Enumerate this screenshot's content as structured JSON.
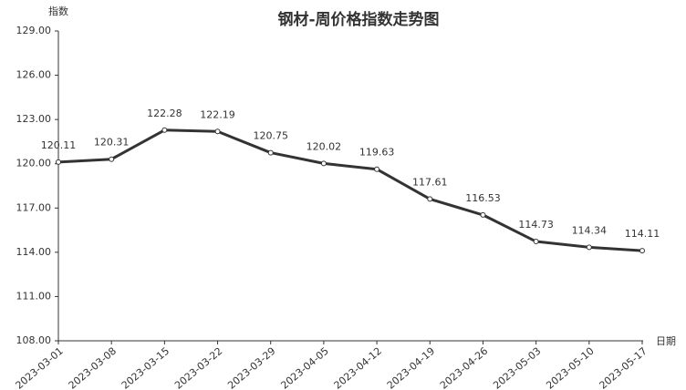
{
  "chart_data": {
    "type": "line",
    "title": "钢材-周价格指数走势图",
    "y_axis_label": "指数",
    "x_axis_label": "日期",
    "categories": [
      "2023-03-01",
      "2023-03-08",
      "2023-03-15",
      "2023-03-22",
      "2023-03-29",
      "2023-04-05",
      "2023-04-12",
      "2023-04-19",
      "2023-04-26",
      "2023-05-03",
      "2023-05-10",
      "2023-05-17"
    ],
    "series": [
      {
        "name": "钢材",
        "color": "#333333",
        "values": [
          120.11,
          120.31,
          122.28,
          122.19,
          120.75,
          120.02,
          119.63,
          117.61,
          116.53,
          114.73,
          114.34,
          114.11
        ]
      }
    ],
    "ylim": [
      108,
      129
    ],
    "yticks": [
      {
        "value": 108,
        "label": "108.00"
      },
      {
        "value": 111,
        "label": "111.00"
      },
      {
        "value": 114,
        "label": "114.00"
      },
      {
        "value": 117,
        "label": "117.00"
      },
      {
        "value": 120,
        "label": "120.00"
      },
      {
        "value": 123,
        "label": "123.00"
      },
      {
        "value": 126,
        "label": "126.00"
      },
      {
        "value": 129,
        "label": "129.00"
      }
    ],
    "grid": false
  }
}
